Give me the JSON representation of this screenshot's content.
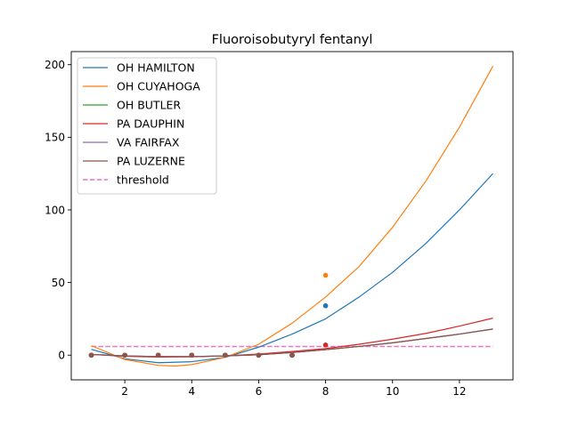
{
  "chart_data": {
    "type": "line",
    "title": "Fluoroisobutyryl fentanyl",
    "xlabel": "",
    "ylabel": "",
    "xlim": [
      0.4,
      13.6
    ],
    "ylim": [
      -17,
      209
    ],
    "xticks": [
      2,
      4,
      6,
      8,
      10,
      12
    ],
    "yticks": [
      0,
      50,
      100,
      150,
      200
    ],
    "grid": false,
    "legend_position": "top-left",
    "fit_x_range": [
      1,
      13
    ],
    "series": [
      {
        "name": "OH HAMILTON",
        "color": "#1f77b4",
        "points": {
          "x": [
            1,
            2,
            3,
            4,
            5,
            6,
            7,
            8
          ],
          "y": [
            0,
            0,
            0,
            0,
            0,
            0,
            0,
            34
          ]
        },
        "fit": {
          "x": [
            1,
            2,
            3,
            4,
            5,
            6,
            7,
            8,
            9,
            10,
            11,
            12,
            13
          ],
          "y": [
            4,
            -2.5,
            -5.2,
            -4.5,
            -1.5,
            5.5,
            14.5,
            25,
            40,
            57,
            77,
            100,
            125
          ]
        }
      },
      {
        "name": "OH CUYAHOGA",
        "color": "#ff7f0e",
        "points": {
          "x": [
            1,
            2,
            3,
            4,
            5,
            6,
            7,
            8
          ],
          "y": [
            0,
            0,
            0,
            0,
            0,
            0,
            0,
            55
          ]
        },
        "fit": {
          "x": [
            1,
            2,
            3,
            3.5,
            4,
            5,
            6,
            7,
            8,
            9,
            10,
            11,
            12,
            13
          ],
          "y": [
            6.5,
            -3,
            -7,
            -7.5,
            -6.5,
            -1.5,
            7.5,
            22,
            40,
            61,
            88,
            120,
            157,
            199
          ]
        }
      },
      {
        "name": "OH BUTLER",
        "color": "#2ca02c",
        "points": {
          "x": [
            1,
            2,
            3,
            4,
            5,
            6,
            7
          ],
          "y": [
            0,
            0,
            0,
            0,
            0,
            0,
            0
          ]
        },
        "fit": {
          "x": [
            1,
            2,
            3,
            4,
            5,
            6,
            7,
            8,
            9,
            10,
            11,
            12,
            13
          ],
          "y": [
            0.5,
            -0.5,
            -1,
            -1,
            -0.5,
            0.3,
            1.8,
            3.8,
            6,
            8.5,
            11.5,
            14.5,
            18
          ]
        }
      },
      {
        "name": "PA DAUPHIN",
        "color": "#d62728",
        "points": {
          "x": [
            1,
            2,
            3,
            4,
            5,
            6,
            7,
            8
          ],
          "y": [
            0,
            0,
            0,
            0,
            0,
            0,
            0,
            7
          ]
        },
        "fit": {
          "x": [
            1,
            2,
            3,
            4,
            5,
            6,
            7,
            8,
            9,
            10,
            11,
            12,
            13
          ],
          "y": [
            0.5,
            -0.8,
            -1.3,
            -1.2,
            -0.5,
            0.8,
            2.5,
            4.5,
            7.5,
            11,
            15,
            20,
            25.5
          ]
        }
      },
      {
        "name": "VA FAIRFAX",
        "color": "#9467bd",
        "points": {
          "x": [
            1,
            2,
            3,
            4,
            5,
            6,
            7
          ],
          "y": [
            0,
            0,
            0,
            0,
            0,
            0,
            0
          ]
        },
        "fit": {
          "x": [
            1,
            2,
            3,
            4,
            5,
            6,
            7,
            8,
            9,
            10,
            11,
            12,
            13
          ],
          "y": [
            0.5,
            -0.5,
            -1,
            -1,
            -0.5,
            0.3,
            1.8,
            3.8,
            6,
            8.5,
            11.5,
            14.5,
            18
          ]
        }
      },
      {
        "name": "PA LUZERNE",
        "color": "#8c564b",
        "points": {
          "x": [
            1,
            2,
            3,
            4,
            5,
            6,
            7
          ],
          "y": [
            0,
            0,
            0,
            0,
            0,
            0,
            0
          ]
        },
        "fit": {
          "x": [
            1,
            2,
            3,
            4,
            5,
            6,
            7,
            8,
            9,
            10,
            11,
            12,
            13
          ],
          "y": [
            0.5,
            -0.5,
            -1,
            -1,
            -0.5,
            0.3,
            1.8,
            3.8,
            6,
            8.5,
            11.5,
            14.5,
            18
          ]
        }
      }
    ],
    "threshold": {
      "name": "threshold",
      "value": 6,
      "color": "#e377c2",
      "style": "dashed"
    }
  }
}
